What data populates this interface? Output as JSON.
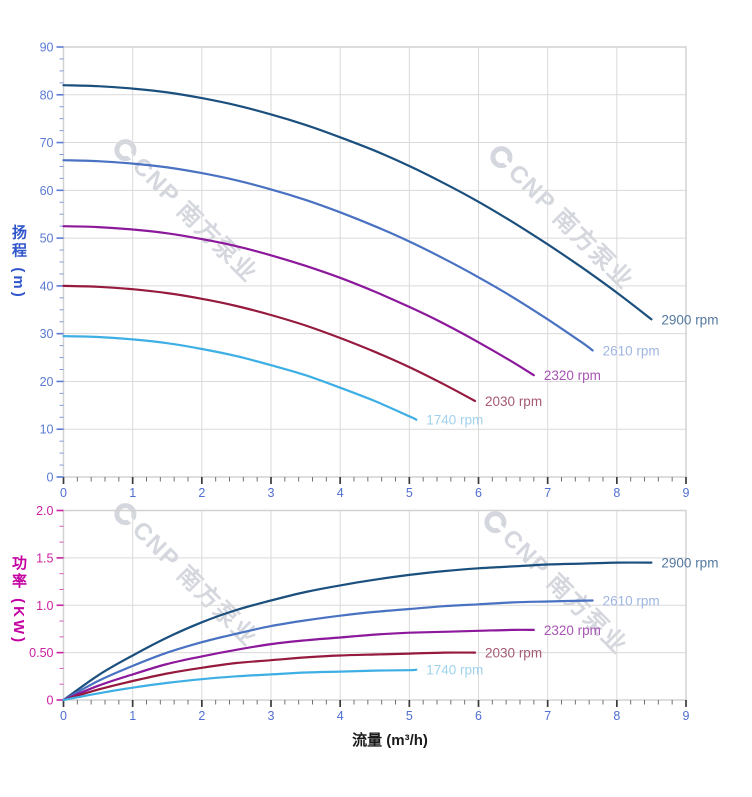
{
  "watermark": {
    "text": "CNP 南方泵业",
    "color": "#d5d7de"
  },
  "chart_data": [
    {
      "type": "line",
      "title": "",
      "xlabel": "",
      "ylabel": "扬程 (m)",
      "xlim": [
        0,
        9
      ],
      "ylim": [
        0,
        90
      ],
      "grid": true,
      "x_tick_values": [
        0,
        1,
        2,
        3,
        4,
        5,
        6,
        7,
        8,
        9
      ],
      "x_tick_labels": [
        "0",
        "1",
        "2",
        "3",
        "4",
        "5",
        "6",
        "7",
        "8",
        "9"
      ],
      "x_minor_step": 0.2,
      "y_tick_values": [
        0,
        10,
        20,
        30,
        40,
        50,
        60,
        70,
        80,
        90
      ],
      "y_tick_labels": [
        "0",
        "10",
        "20",
        "30",
        "40",
        "50",
        "60",
        "70",
        "80",
        "90"
      ],
      "y_minor_step": 2.5,
      "x_label_color": "#4f6fd1",
      "y_label_color": "#5b7bd5",
      "series": [
        {
          "name": "2900 rpm",
          "color": "#1b4f7d",
          "label_color": "#54789f",
          "points": [
            [
              0,
              82
            ],
            [
              0.5,
              81.8
            ],
            [
              1,
              81.3
            ],
            [
              1.5,
              80.5
            ],
            [
              2,
              79.3
            ],
            [
              2.5,
              77.8
            ],
            [
              3,
              75.9
            ],
            [
              3.5,
              73.7
            ],
            [
              4,
              71.1
            ],
            [
              4.5,
              68.3
            ],
            [
              5,
              65.1
            ],
            [
              5.5,
              61.5
            ],
            [
              6,
              57.6
            ],
            [
              6.5,
              53.3
            ],
            [
              7,
              48.7
            ],
            [
              7.5,
              43.8
            ],
            [
              8,
              38.6
            ],
            [
              8.5,
              33
            ]
          ]
        },
        {
          "name": "2610 rpm",
          "color": "#4a72c2",
          "label_color": "#9fb6e0",
          "points": [
            [
              0,
              66.3
            ],
            [
              0.5,
              66.1
            ],
            [
              1,
              65.6
            ],
            [
              1.5,
              64.8
            ],
            [
              2,
              63.6
            ],
            [
              2.5,
              62.1
            ],
            [
              3,
              60.2
            ],
            [
              3.5,
              58
            ],
            [
              4,
              55.4
            ],
            [
              4.5,
              52.5
            ],
            [
              5,
              49.3
            ],
            [
              5.5,
              45.7
            ],
            [
              6,
              41.8
            ],
            [
              6.5,
              37.6
            ],
            [
              7,
              33
            ],
            [
              7.5,
              28.1
            ],
            [
              7.65,
              26.5
            ]
          ]
        },
        {
          "name": "2320 rpm",
          "color": "#8c189b",
          "label_color": "#a854b4",
          "points": [
            [
              0,
              52.5
            ],
            [
              0.5,
              52.3
            ],
            [
              1,
              51.8
            ],
            [
              1.5,
              51
            ],
            [
              2,
              49.8
            ],
            [
              2.5,
              48.3
            ],
            [
              3,
              46.4
            ],
            [
              3.5,
              44.2
            ],
            [
              4,
              41.7
            ],
            [
              4.5,
              38.8
            ],
            [
              5,
              35.6
            ],
            [
              5.5,
              32.1
            ],
            [
              6,
              28.2
            ],
            [
              6.5,
              24
            ],
            [
              6.8,
              21.3
            ]
          ]
        },
        {
          "name": "2030 rpm",
          "color": "#951a3e",
          "label_color": "#a55a73",
          "points": [
            [
              0,
              40
            ],
            [
              0.5,
              39.8
            ],
            [
              1,
              39.3
            ],
            [
              1.5,
              38.5
            ],
            [
              2,
              37.3
            ],
            [
              2.5,
              35.8
            ],
            [
              3,
              33.9
            ],
            [
              3.5,
              31.7
            ],
            [
              4,
              29.1
            ],
            [
              4.5,
              26.2
            ],
            [
              5,
              23
            ],
            [
              5.5,
              19.4
            ],
            [
              5.95,
              15.9
            ]
          ]
        },
        {
          "name": "1740 rpm",
          "color": "#3eafe4",
          "label_color": "#a0d2ee",
          "points": [
            [
              0,
              29.5
            ],
            [
              0.5,
              29.3
            ],
            [
              1,
              28.8
            ],
            [
              1.5,
              28
            ],
            [
              2,
              26.8
            ],
            [
              2.5,
              25.3
            ],
            [
              3,
              23.4
            ],
            [
              3.5,
              21.3
            ],
            [
              4,
              18.7
            ],
            [
              4.5,
              15.9
            ],
            [
              5,
              12.7
            ],
            [
              5.1,
              12
            ]
          ]
        }
      ]
    },
    {
      "type": "line",
      "title": "",
      "xlabel": "流量 (m³/h)",
      "ylabel": "功率 (KW)",
      "xlim": [
        0,
        9
      ],
      "ylim": [
        0,
        2
      ],
      "grid": true,
      "x_tick_values": [
        0,
        1,
        2,
        3,
        4,
        5,
        6,
        7,
        8,
        9
      ],
      "x_tick_labels": [
        "0",
        "1",
        "2",
        "3",
        "4",
        "5",
        "6",
        "7",
        "8",
        "9"
      ],
      "x_minor_step": 0.2,
      "y_tick_values": [
        0,
        0.5,
        1,
        1.5,
        2
      ],
      "y_tick_labels": [
        "0",
        "0.50",
        "1.0",
        "1.5",
        "2.0"
      ],
      "y_minor_step": 0.1667,
      "x_label_color": "#4f6fd1",
      "y_label_color": "#cb22a0",
      "series": [
        {
          "name": "2900 rpm",
          "color": "#1b4f7d",
          "label_color": "#54789f",
          "points": [
            [
              0,
              0
            ],
            [
              0.5,
              0.26
            ],
            [
              1,
              0.47
            ],
            [
              1.5,
              0.66
            ],
            [
              2,
              0.82
            ],
            [
              2.5,
              0.95
            ],
            [
              3,
              1.05
            ],
            [
              3.5,
              1.14
            ],
            [
              4,
              1.21
            ],
            [
              4.5,
              1.27
            ],
            [
              5,
              1.32
            ],
            [
              5.5,
              1.36
            ],
            [
              6,
              1.39
            ],
            [
              6.5,
              1.41
            ],
            [
              7,
              1.43
            ],
            [
              7.5,
              1.44
            ],
            [
              8,
              1.45
            ],
            [
              8.5,
              1.45
            ]
          ]
        },
        {
          "name": "2610 rpm",
          "color": "#4a72c2",
          "label_color": "#9fb6e0",
          "points": [
            [
              0,
              0
            ],
            [
              0.5,
              0.2
            ],
            [
              1,
              0.36
            ],
            [
              1.5,
              0.5
            ],
            [
              2,
              0.61
            ],
            [
              2.5,
              0.7
            ],
            [
              3,
              0.78
            ],
            [
              3.5,
              0.84
            ],
            [
              4,
              0.89
            ],
            [
              4.5,
              0.93
            ],
            [
              5,
              0.96
            ],
            [
              5.5,
              0.99
            ],
            [
              6,
              1.01
            ],
            [
              6.5,
              1.03
            ],
            [
              7,
              1.04
            ],
            [
              7.65,
              1.05
            ]
          ]
        },
        {
          "name": "2320 rpm",
          "color": "#8c189b",
          "label_color": "#a854b4",
          "points": [
            [
              0,
              0
            ],
            [
              0.5,
              0.15
            ],
            [
              1,
              0.27
            ],
            [
              1.5,
              0.38
            ],
            [
              2,
              0.46
            ],
            [
              2.5,
              0.53
            ],
            [
              3,
              0.59
            ],
            [
              3.5,
              0.63
            ],
            [
              4,
              0.66
            ],
            [
              4.5,
              0.69
            ],
            [
              5,
              0.71
            ],
            [
              5.5,
              0.72
            ],
            [
              6,
              0.73
            ],
            [
              6.5,
              0.74
            ],
            [
              6.8,
              0.74
            ]
          ]
        },
        {
          "name": "2030 rpm",
          "color": "#951a3e",
          "label_color": "#a55a73",
          "points": [
            [
              0,
              0
            ],
            [
              0.5,
              0.11
            ],
            [
              1,
              0.2
            ],
            [
              1.5,
              0.28
            ],
            [
              2,
              0.34
            ],
            [
              2.5,
              0.39
            ],
            [
              3,
              0.42
            ],
            [
              3.5,
              0.45
            ],
            [
              4,
              0.47
            ],
            [
              4.5,
              0.48
            ],
            [
              5,
              0.49
            ],
            [
              5.5,
              0.5
            ],
            [
              5.95,
              0.5
            ]
          ]
        },
        {
          "name": "1740 rpm",
          "color": "#3eafe4",
          "label_color": "#a0d2ee",
          "points": [
            [
              0,
              0
            ],
            [
              0.5,
              0.07
            ],
            [
              1,
              0.13
            ],
            [
              1.5,
              0.18
            ],
            [
              2,
              0.22
            ],
            [
              2.5,
              0.25
            ],
            [
              3,
              0.27
            ],
            [
              3.5,
              0.29
            ],
            [
              4,
              0.3
            ],
            [
              4.5,
              0.31
            ],
            [
              5,
              0.315
            ],
            [
              5.1,
              0.32
            ]
          ]
        }
      ]
    }
  ]
}
